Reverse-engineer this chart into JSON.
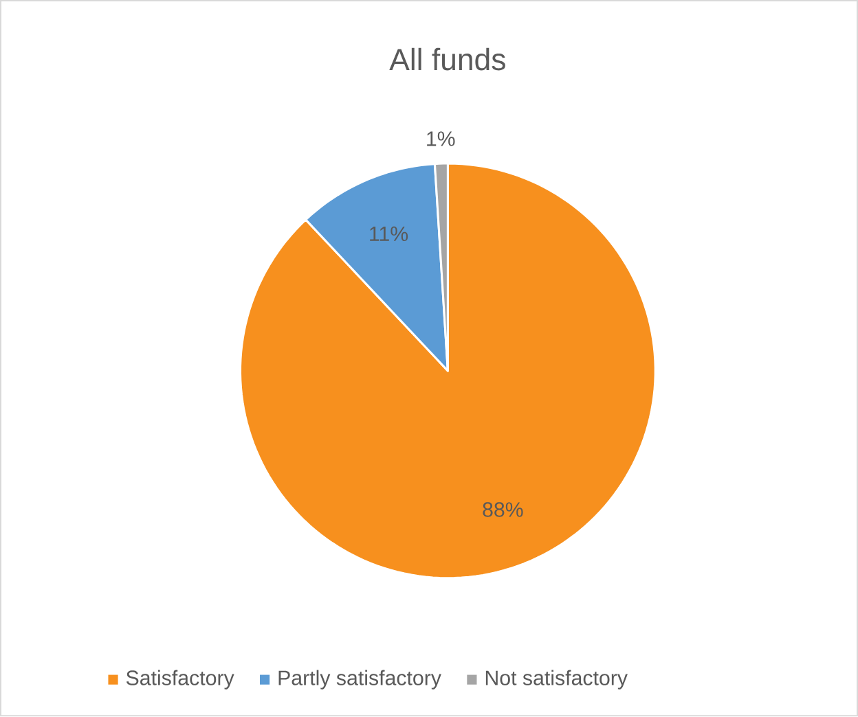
{
  "chart_data": {
    "type": "pie",
    "title": "All funds",
    "categories": [
      "Satisfactory",
      "Partly satisfactory",
      "Not satisfactory"
    ],
    "values": [
      88,
      11,
      1
    ],
    "colors": [
      "#f7901e",
      "#5b9bd5",
      "#a5a5a5"
    ],
    "value_labels": [
      "88%",
      "11%",
      "1%"
    ],
    "legend": "bottom"
  }
}
